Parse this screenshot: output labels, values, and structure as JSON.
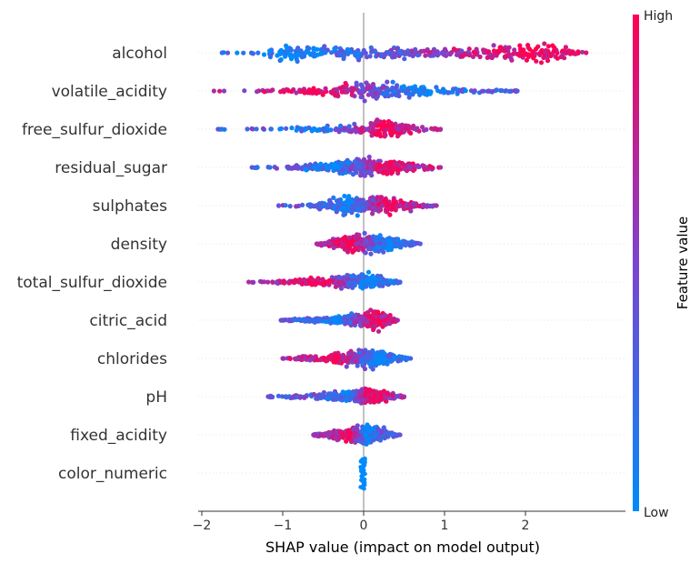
{
  "chart_data": {
    "type": "scatter",
    "subtype": "shap-beeswarm",
    "xlabel": "SHAP value (impact on model output)",
    "xlim": [
      -2.05,
      2.85
    ],
    "xticks": [
      -2,
      -1,
      0,
      1,
      2
    ],
    "xtick_labels": [
      "−2",
      "−1",
      "0",
      "1",
      "2"
    ],
    "colorbar": {
      "title": "Feature value",
      "high_label": "High",
      "low_label": "Low"
    },
    "colors": {
      "low": "#008bfb",
      "high": "#ff0052",
      "zero_line": "#999999",
      "row_guides": "#cccccc",
      "axis": "#333333"
    },
    "features": [
      {
        "name": "alcohol",
        "min": -1.75,
        "max": 2.75,
        "low_center": -0.95,
        "high_center": 2.2,
        "density": [
          [
            -1.75,
            0.02
          ],
          [
            -1.3,
            0.12
          ],
          [
            -0.95,
            1.0
          ],
          [
            -0.6,
            0.75
          ],
          [
            -0.2,
            0.55
          ],
          [
            0.3,
            0.55
          ],
          [
            0.9,
            0.5
          ],
          [
            1.6,
            0.55
          ],
          [
            2.2,
            0.95
          ],
          [
            2.5,
            0.5
          ],
          [
            2.75,
            0.05
          ]
        ]
      },
      {
        "name": "volatile_acidity",
        "min": -1.85,
        "max": 1.9,
        "low_center": 0.7,
        "high_center": -0.6,
        "density": [
          [
            -1.85,
            0.03
          ],
          [
            -1.2,
            0.1
          ],
          [
            -0.6,
            0.3
          ],
          [
            -0.2,
            0.7
          ],
          [
            0.0,
            1.0
          ],
          [
            0.3,
            0.75
          ],
          [
            0.8,
            0.45
          ],
          [
            1.3,
            0.3
          ],
          [
            1.9,
            0.05
          ]
        ]
      },
      {
        "name": "free_sulfur_dioxide",
        "min": -1.8,
        "max": 0.95,
        "low_center": -0.6,
        "high_center": 0.25,
        "density": [
          [
            -1.8,
            0.03
          ],
          [
            -1.0,
            0.1
          ],
          [
            -0.4,
            0.3
          ],
          [
            0.0,
            0.55
          ],
          [
            0.2,
            1.0
          ],
          [
            0.45,
            0.75
          ],
          [
            0.7,
            0.25
          ],
          [
            0.95,
            0.05
          ]
        ]
      },
      {
        "name": "residual_sugar",
        "min": -1.38,
        "max": 0.95,
        "low_center": -0.4,
        "high_center": 0.35,
        "density": [
          [
            -1.38,
            0.05
          ],
          [
            -0.8,
            0.25
          ],
          [
            -0.3,
            0.6
          ],
          [
            0.0,
            1.0
          ],
          [
            0.3,
            0.85
          ],
          [
            0.6,
            0.5
          ],
          [
            0.95,
            0.05
          ]
        ]
      },
      {
        "name": "sulphates",
        "min": -1.05,
        "max": 0.9,
        "low_center": -0.2,
        "high_center": 0.3,
        "density": [
          [
            -1.05,
            0.03
          ],
          [
            -0.6,
            0.2
          ],
          [
            -0.2,
            1.0
          ],
          [
            0.0,
            0.7
          ],
          [
            0.2,
            0.95
          ],
          [
            0.5,
            0.5
          ],
          [
            0.9,
            0.05
          ]
        ]
      },
      {
        "name": "density",
        "min": -0.58,
        "max": 0.7,
        "low_center": 0.3,
        "high_center": -0.2,
        "density": [
          [
            -0.58,
            0.05
          ],
          [
            -0.3,
            0.6
          ],
          [
            0.0,
            1.0
          ],
          [
            0.3,
            0.7
          ],
          [
            0.55,
            0.3
          ],
          [
            0.7,
            0.05
          ]
        ]
      },
      {
        "name": "total_sulfur_dioxide",
        "min": -1.42,
        "max": 0.45,
        "low_center": 0.1,
        "high_center": -0.6,
        "density": [
          [
            -1.42,
            0.05
          ],
          [
            -0.9,
            0.2
          ],
          [
            -0.4,
            0.5
          ],
          [
            0.0,
            1.0
          ],
          [
            0.2,
            0.6
          ],
          [
            0.45,
            0.05
          ]
        ]
      },
      {
        "name": "citric_acid",
        "min": -1.02,
        "max": 0.42,
        "low_center": -0.3,
        "high_center": 0.1,
        "density": [
          [
            -1.02,
            0.05
          ],
          [
            -0.5,
            0.3
          ],
          [
            -0.1,
            0.6
          ],
          [
            0.1,
            1.0
          ],
          [
            0.3,
            0.6
          ],
          [
            0.42,
            0.05
          ]
        ]
      },
      {
        "name": "chlorides",
        "min": -1.0,
        "max": 0.58,
        "low_center": 0.2,
        "high_center": -0.4,
        "density": [
          [
            -1.0,
            0.05
          ],
          [
            -0.5,
            0.35
          ],
          [
            -0.1,
            0.8
          ],
          [
            0.05,
            1.0
          ],
          [
            0.3,
            0.6
          ],
          [
            0.58,
            0.05
          ]
        ]
      },
      {
        "name": "pH",
        "min": -1.18,
        "max": 0.5,
        "low_center": -0.2,
        "high_center": 0.1,
        "density": [
          [
            -1.18,
            0.05
          ],
          [
            -0.6,
            0.25
          ],
          [
            -0.2,
            0.55
          ],
          [
            0.0,
            1.0
          ],
          [
            0.25,
            0.6
          ],
          [
            0.5,
            0.05
          ]
        ]
      },
      {
        "name": "fixed_acidity",
        "min": -0.62,
        "max": 0.45,
        "low_center": 0.05,
        "high_center": -0.2,
        "density": [
          [
            -0.62,
            0.1
          ],
          [
            -0.3,
            0.5
          ],
          [
            0.0,
            1.0
          ],
          [
            0.25,
            0.6
          ],
          [
            0.45,
            0.05
          ]
        ]
      },
      {
        "name": "color_numeric",
        "min": -0.04,
        "max": 0.02,
        "low_center": 0.0,
        "high_center": 0.0,
        "density": [
          [
            -0.04,
            1.0
          ],
          [
            0.02,
            1.0
          ]
        ]
      }
    ]
  }
}
